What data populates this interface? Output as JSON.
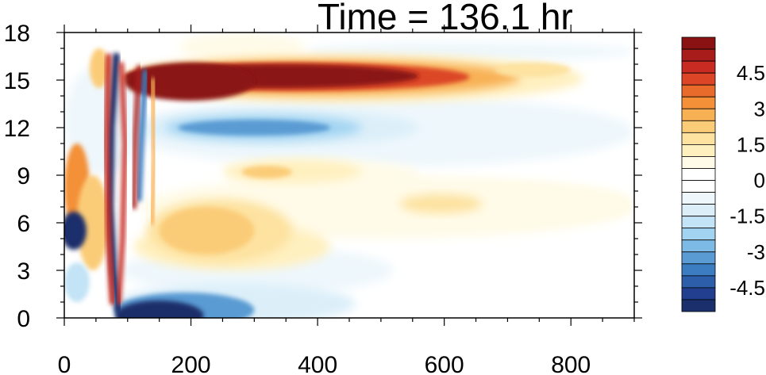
{
  "chart_data": {
    "type": "heatmap",
    "title": "Time = 136.1 hr",
    "xlabel": "",
    "ylabel": "",
    "xlim": [
      0,
      900
    ],
    "ylim": [
      0,
      18
    ],
    "x_ticks": [
      0,
      200,
      400,
      600,
      800
    ],
    "y_ticks": [
      0,
      3,
      6,
      9,
      12,
      15,
      18
    ],
    "colorbar": {
      "levels": [
        -5.5,
        -5,
        -4.5,
        -4,
        -3.5,
        -3,
        -2.5,
        -2,
        -1.5,
        -1,
        -0.5,
        0,
        0.5,
        1,
        1.5,
        2,
        2.5,
        3,
        3.5,
        4,
        4.5,
        5,
        5.5
      ],
      "colors": [
        "#1a2f6b",
        "#223f8f",
        "#2c5eaa",
        "#3b7dc0",
        "#5a9bd3",
        "#7dbbe6",
        "#a2d4f2",
        "#c3e3f6",
        "#dceff9",
        "#eef7fc",
        "#ffffff",
        "#ffffff",
        "#fffbe8",
        "#fff0c0",
        "#fde2a0",
        "#fbcc78",
        "#f8b055",
        "#f39038",
        "#e96b2c",
        "#dc4626",
        "#c72b22",
        "#a81c1c",
        "#8a1212"
      ],
      "labels": [
        "4.5",
        "3",
        "1.5",
        "0",
        "-1.5",
        "-3",
        "-4.5"
      ],
      "label_values": [
        4.5,
        3,
        1.5,
        0,
        -1.5,
        -3,
        -4.5
      ]
    },
    "features": [
      {
        "name": "upper-warm-band",
        "sign": "positive",
        "x": [
          100,
          800
        ],
        "y": [
          13.5,
          16.5
        ],
        "peak": 6
      },
      {
        "name": "mid-cool-band",
        "sign": "negative",
        "x": [
          120,
          520
        ],
        "y": [
          11,
          13
        ],
        "peak": -3.5
      },
      {
        "name": "surface-cool-band",
        "sign": "negative",
        "x": [
          80,
          420
        ],
        "y": [
          0,
          2
        ],
        "peak": -5.5
      },
      {
        "name": "low-level-warm-patches",
        "sign": "positive",
        "x": [
          120,
          900
        ],
        "y": [
          3,
          10
        ],
        "peak": 2.5
      },
      {
        "name": "left-cold-core",
        "sign": "negative",
        "x": [
          0,
          40
        ],
        "y": [
          4.5,
          6.5
        ],
        "peak": -6
      }
    ]
  }
}
